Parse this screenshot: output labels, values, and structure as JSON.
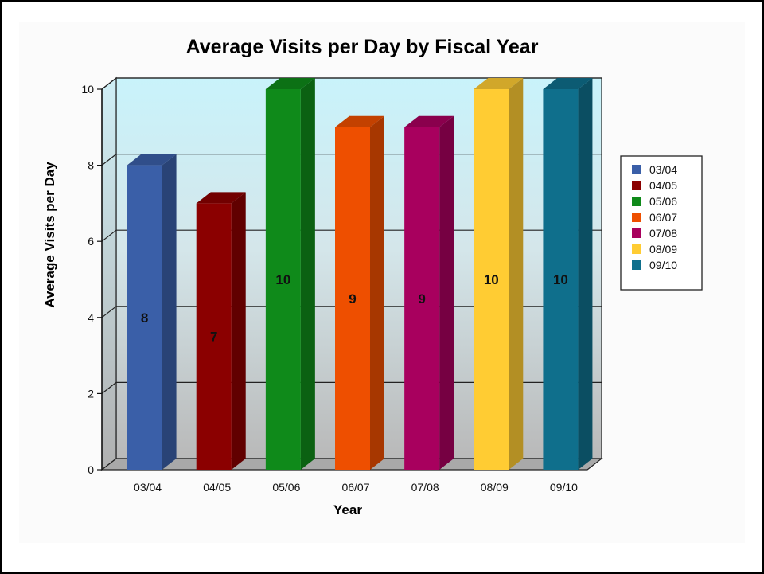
{
  "chart_data": {
    "type": "bar",
    "title": "Average Visits per Day by Fiscal Year",
    "xlabel": "Year",
    "ylabel": "Average Visits per Day",
    "categories": [
      "03/04",
      "04/05",
      "05/06",
      "06/07",
      "07/08",
      "08/09",
      "09/10"
    ],
    "values": [
      8,
      7,
      10,
      9,
      9,
      10,
      10
    ],
    "data_labels": [
      "8",
      "7",
      "10",
      "9",
      "9",
      "10",
      "10"
    ],
    "colors": [
      "#3a5fa8",
      "#8b0000",
      "#0f8a1a",
      "#ee4f00",
      "#a8005e",
      "#ffcc33",
      "#0f6f8c"
    ],
    "ylim": [
      0,
      10
    ],
    "yticks": [
      "0",
      "2",
      "4",
      "6",
      "8",
      "10"
    ],
    "grid": true,
    "legend": {
      "placement": "right",
      "entries": [
        "03/04",
        "04/05",
        "05/06",
        "06/07",
        "07/08",
        "08/09",
        "09/10"
      ]
    },
    "style": "3d-columns"
  }
}
